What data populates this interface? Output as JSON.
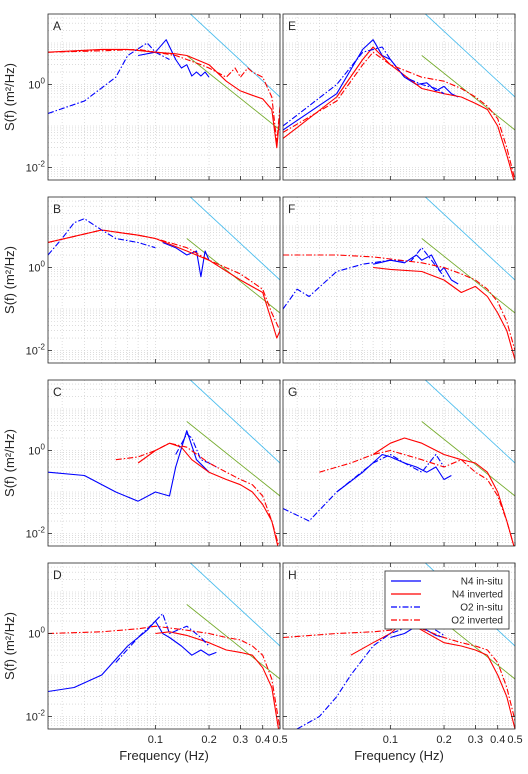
{
  "chart_data": {
    "type": "line",
    "x_scale": "log",
    "y_scale": "log",
    "xlim": [
      0.025,
      0.5
    ],
    "ylim": [
      0.005,
      50
    ],
    "grid": true,
    "xlabel": "Frequency (Hz)",
    "ylabel": "S(f) (m²/Hz)",
    "x_ticks": [
      {
        "value": 0.1,
        "label": "0.1"
      },
      {
        "value": 0.2,
        "label": "0.2"
      },
      {
        "value": 0.3,
        "label": "0.3"
      },
      {
        "value": 0.4,
        "label": "0.4"
      },
      {
        "value": 0.5,
        "label": "0.5"
      }
    ],
    "y_ticks": [
      {
        "value": 0.01,
        "base": "10",
        "exp": "-2"
      },
      {
        "value": 1,
        "base": "10",
        "exp": "0"
      }
    ],
    "legend": {
      "placement": "inside-top-right",
      "panel": "H",
      "entries": [
        {
          "label": "N4 in-situ",
          "color": "#0000FF",
          "dash": "solid"
        },
        {
          "label": "N4 inverted",
          "color": "#FF0000",
          "dash": "solid"
        },
        {
          "label": "O2 in-situ",
          "color": "#0000FF",
          "dash": "dashdot"
        },
        {
          "label": "O2 inverted",
          "color": "#FF0000",
          "dash": "dashdot"
        }
      ]
    },
    "reference_lines": [
      {
        "color": "#4DBEEE",
        "points": [
          [
            0.15,
            60
          ],
          [
            0.5,
            0.5
          ]
        ]
      },
      {
        "color": "#77AC30",
        "points": [
          [
            0.15,
            5
          ],
          [
            0.5,
            0.08
          ]
        ]
      }
    ],
    "panels": [
      {
        "label": "A",
        "series": [
          {
            "name": "N4 in-situ",
            "x": [
              0.08,
              0.1,
              0.115,
              0.13,
              0.14,
              0.15,
              0.16,
              0.17,
              0.18,
              0.19,
              0.2
            ],
            "y": [
              5,
              6,
              12,
              4,
              2.5,
              3,
              1.6,
              2,
              1.6,
              2,
              1.5
            ]
          },
          {
            "name": "N4 inverted",
            "x": [
              0.025,
              0.05,
              0.07,
              0.1,
              0.13,
              0.15,
              0.2,
              0.25,
              0.3,
              0.35,
              0.4,
              0.45,
              0.48,
              0.5
            ],
            "y": [
              6,
              7,
              7,
              6,
              5.5,
              5,
              3,
              1.2,
              0.7,
              0.55,
              0.45,
              0.25,
              0.03,
              0.2
            ]
          },
          {
            "name": "O2 in-situ",
            "x": [
              0.025,
              0.04,
              0.06,
              0.07,
              0.09,
              0.1,
              0.12
            ],
            "y": [
              0.2,
              0.4,
              1.5,
              5,
              10,
              6,
              4
            ]
          },
          {
            "name": "O2 inverted",
            "x": [
              0.025,
              0.05,
              0.08,
              0.1,
              0.13,
              0.15,
              0.18,
              0.2,
              0.25,
              0.28,
              0.3,
              0.33,
              0.35,
              0.4,
              0.45,
              0.48,
              0.5
            ],
            "y": [
              6,
              6.5,
              7,
              6,
              5,
              4,
              3,
              2.5,
              1.5,
              2.5,
              1.5,
              2.5,
              2,
              1.5,
              0.5,
              0.04,
              0.3
            ]
          }
        ]
      },
      {
        "label": "E",
        "series": [
          {
            "name": "N4 in-situ",
            "x": [
              0.025,
              0.05,
              0.07,
              0.08,
              0.09,
              0.1,
              0.12,
              0.14,
              0.16,
              0.18,
              0.2,
              0.22,
              0.24
            ],
            "y": [
              0.08,
              0.6,
              7,
              12,
              5,
              4,
              1.5,
              1,
              1.1,
              0.7,
              0.9,
              0.6,
              0.5
            ]
          },
          {
            "name": "N4 inverted",
            "x": [
              0.025,
              0.05,
              0.07,
              0.08,
              0.1,
              0.15,
              0.2,
              0.25,
              0.3,
              0.35,
              0.4,
              0.45,
              0.5
            ],
            "y": [
              0.05,
              0.5,
              4,
              8,
              3,
              0.8,
              0.6,
              0.5,
              0.35,
              0.25,
              0.1,
              0.02,
              0.004
            ]
          },
          {
            "name": "O2 in-situ",
            "x": [
              0.025,
              0.05,
              0.07,
              0.09,
              0.1,
              0.12,
              0.15,
              0.18,
              0.2
            ],
            "y": [
              0.1,
              1,
              6,
              8,
              4,
              1.5,
              1,
              0.8,
              0.6
            ]
          },
          {
            "name": "O2 inverted",
            "x": [
              0.025,
              0.05,
              0.07,
              0.08,
              0.1,
              0.15,
              0.2,
              0.25,
              0.3,
              0.35,
              0.4,
              0.45,
              0.5
            ],
            "y": [
              0.07,
              0.4,
              3,
              6,
              3,
              1.5,
              1.2,
              0.8,
              0.5,
              0.3,
              0.15,
              0.03,
              0.005
            ]
          }
        ]
      },
      {
        "label": "B",
        "series": [
          {
            "name": "N4 in-situ",
            "x": [
              0.11,
              0.13,
              0.15,
              0.17,
              0.18,
              0.19,
              0.2
            ],
            "y": [
              4,
              3,
              2,
              2.5,
              0.6,
              2.5,
              1.5
            ]
          },
          {
            "name": "N4 inverted",
            "x": [
              0.025,
              0.05,
              0.08,
              0.1,
              0.15,
              0.2,
              0.3,
              0.4,
              0.45,
              0.48,
              0.5
            ],
            "y": [
              4,
              8,
              6,
              5,
              2.5,
              1.5,
              0.5,
              0.25,
              0.05,
              0.02,
              0.03
            ]
          },
          {
            "name": "O2 in-situ",
            "x": [
              0.025,
              0.03,
              0.035,
              0.04,
              0.05,
              0.06,
              0.08,
              0.1
            ],
            "y": [
              2,
              5,
              12,
              15,
              8,
              5,
              4,
              3
            ]
          },
          {
            "name": "O2 inverted",
            "x": [
              0.025,
              0.05,
              0.08,
              0.1,
              0.15,
              0.2,
              0.3,
              0.4,
              0.45,
              0.5
            ],
            "y": [
              4,
              8,
              6,
              5,
              3,
              1.5,
              0.7,
              0.3,
              0.08,
              0.03
            ]
          }
        ]
      },
      {
        "label": "F",
        "series": [
          {
            "name": "N4 in-situ",
            "x": [
              0.08,
              0.1,
              0.12,
              0.14,
              0.15,
              0.17,
              0.19,
              0.2,
              0.22,
              0.24
            ],
            "y": [
              1.2,
              1.5,
              1.3,
              2,
              1.5,
              2,
              0.8,
              1,
              0.5,
              0.4
            ]
          },
          {
            "name": "N4 inverted",
            "x": [
              0.08,
              0.1,
              0.15,
              0.2,
              0.25,
              0.3,
              0.35,
              0.4,
              0.45,
              0.5
            ],
            "y": [
              1,
              0.9,
              0.8,
              0.5,
              0.25,
              0.35,
              0.2,
              0.08,
              0.03,
              0.006
            ]
          },
          {
            "name": "O2 in-situ",
            "x": [
              0.025,
              0.03,
              0.035,
              0.05,
              0.07,
              0.1,
              0.13,
              0.15,
              0.17,
              0.2
            ],
            "y": [
              0.1,
              0.3,
              0.2,
              0.8,
              1.2,
              1.5,
              1.4,
              3,
              1.5,
              0.6
            ]
          },
          {
            "name": "O2 inverted",
            "x": [
              0.025,
              0.05,
              0.08,
              0.1,
              0.15,
              0.2,
              0.25,
              0.3,
              0.35,
              0.4,
              0.45,
              0.5
            ],
            "y": [
              2,
              2,
              1.8,
              1.6,
              1.3,
              1,
              0.7,
              0.5,
              0.3,
              0.15,
              0.05,
              0.01
            ]
          }
        ]
      },
      {
        "label": "C",
        "series": [
          {
            "name": "N4 in-situ",
            "x": [
              0.025,
              0.04,
              0.06,
              0.08,
              0.1,
              0.12,
              0.13,
              0.15,
              0.17,
              0.2
            ],
            "y": [
              0.3,
              0.25,
              0.1,
              0.06,
              0.1,
              0.08,
              0.4,
              3,
              0.6,
              0.3
            ]
          },
          {
            "name": "N4 inverted",
            "x": [
              0.08,
              0.1,
              0.12,
              0.14,
              0.16,
              0.2,
              0.25,
              0.3,
              0.35,
              0.4,
              0.45,
              0.5
            ],
            "y": [
              0.5,
              1,
              1.5,
              1.2,
              0.6,
              0.3,
              0.2,
              0.15,
              0.1,
              0.05,
              0.02,
              0.003
            ]
          },
          {
            "name": "O2 in-situ",
            "x": [
              0.13,
              0.15,
              0.16,
              0.18,
              0.2,
              0.22
            ],
            "y": [
              0.8,
              2.5,
              2,
              0.6,
              0.5,
              0.4
            ]
          },
          {
            "name": "O2 inverted",
            "x": [
              0.06,
              0.08,
              0.1,
              0.12,
              0.15,
              0.2,
              0.25,
              0.3,
              0.35,
              0.4,
              0.45,
              0.5
            ],
            "y": [
              0.6,
              0.7,
              1,
              1.5,
              1.2,
              0.5,
              0.3,
              0.2,
              0.15,
              0.08,
              0.02,
              0.004
            ]
          }
        ]
      },
      {
        "label": "G",
        "series": [
          {
            "name": "N4 in-situ",
            "x": [
              0.05,
              0.07,
              0.09,
              0.1,
              0.12,
              0.14,
              0.16,
              0.18,
              0.2,
              0.22
            ],
            "y": [
              0.1,
              0.3,
              0.8,
              0.7,
              0.5,
              0.4,
              0.3,
              0.4,
              0.2,
              0.25
            ]
          },
          {
            "name": "N4 inverted",
            "x": [
              0.08,
              0.1,
              0.12,
              0.15,
              0.2,
              0.25,
              0.3,
              0.35,
              0.4,
              0.45,
              0.5
            ],
            "y": [
              0.8,
              1.5,
              2,
              1.5,
              0.8,
              0.6,
              0.5,
              0.3,
              0.1,
              0.02,
              0.004
            ]
          },
          {
            "name": "O2 in-situ",
            "x": [
              0.025,
              0.035,
              0.05,
              0.08,
              0.1,
              0.12,
              0.15,
              0.18,
              0.2
            ],
            "y": [
              0.04,
              0.02,
              0.1,
              0.5,
              0.8,
              0.5,
              0.3,
              0.8,
              0.4
            ]
          },
          {
            "name": "O2 inverted",
            "x": [
              0.04,
              0.06,
              0.08,
              0.1,
              0.15,
              0.2,
              0.25,
              0.3,
              0.35,
              0.4,
              0.45,
              0.5
            ],
            "y": [
              0.3,
              0.5,
              0.8,
              1,
              0.6,
              0.4,
              0.6,
              0.3,
              0.2,
              0.08,
              0.02,
              0.004
            ]
          }
        ]
      },
      {
        "label": "D",
        "series": [
          {
            "name": "N4 in-situ",
            "x": [
              0.025,
              0.035,
              0.05,
              0.07,
              0.09,
              0.1,
              0.11,
              0.12,
              0.14,
              0.16,
              0.18,
              0.2,
              0.22
            ],
            "y": [
              0.04,
              0.05,
              0.1,
              0.5,
              1.2,
              2,
              1,
              0.8,
              0.5,
              0.3,
              0.4,
              0.3,
              0.35
            ]
          },
          {
            "name": "N4 inverted",
            "x": [
              0.1,
              0.12,
              0.15,
              0.2,
              0.25,
              0.3,
              0.35,
              0.4,
              0.45,
              0.5
            ],
            "y": [
              1,
              1.1,
              0.9,
              0.6,
              0.4,
              0.35,
              0.3,
              0.15,
              0.05,
              0.003
            ]
          },
          {
            "name": "O2 in-situ",
            "x": [
              0.06,
              0.08,
              0.1,
              0.11,
              0.12,
              0.15,
              0.18,
              0.2
            ],
            "y": [
              0.2,
              0.8,
              2,
              3,
              1,
              1.5,
              0.8,
              0.5
            ]
          },
          {
            "name": "O2 inverted",
            "x": [
              0.025,
              0.05,
              0.08,
              0.1,
              0.15,
              0.2,
              0.25,
              0.3,
              0.35,
              0.4,
              0.45,
              0.5
            ],
            "y": [
              1,
              1.1,
              1.3,
              1.5,
              1.2,
              1,
              0.8,
              0.7,
              0.5,
              0.3,
              0.08,
              0.005
            ]
          }
        ]
      },
      {
        "label": "H",
        "series": [
          {
            "name": "N4 in-situ",
            "x": [
              0.1,
              0.12,
              0.14,
              0.16,
              0.18,
              0.2
            ],
            "y": [
              0.8,
              1,
              1.5,
              1.2,
              0.9,
              0.8
            ]
          },
          {
            "name": "N4 inverted",
            "x": [
              0.06,
              0.08,
              0.1,
              0.12,
              0.15,
              0.2,
              0.25,
              0.3,
              0.35,
              0.4,
              0.45,
              0.5
            ],
            "y": [
              0.3,
              0.6,
              1,
              2,
              1.2,
              0.6,
              0.5,
              0.4,
              0.3,
              0.1,
              0.03,
              0.005
            ]
          },
          {
            "name": "O2 in-situ",
            "x": [
              0.03,
              0.04,
              0.05,
              0.06,
              0.08,
              0.1,
              0.13,
              0.15,
              0.18,
              0.2
            ],
            "y": [
              0.005,
              0.01,
              0.03,
              0.1,
              0.5,
              1,
              1.5,
              1.8,
              1.2,
              0.9
            ]
          },
          {
            "name": "O2 inverted",
            "x": [
              0.025,
              0.05,
              0.08,
              0.1,
              0.12,
              0.15,
              0.2,
              0.25,
              0.3,
              0.35,
              0.4,
              0.45,
              0.5
            ],
            "y": [
              0.8,
              1,
              1.1,
              1.2,
              1.5,
              1.3,
              0.8,
              0.6,
              0.5,
              0.4,
              0.2,
              0.05,
              0.008
            ]
          }
        ]
      }
    ]
  }
}
